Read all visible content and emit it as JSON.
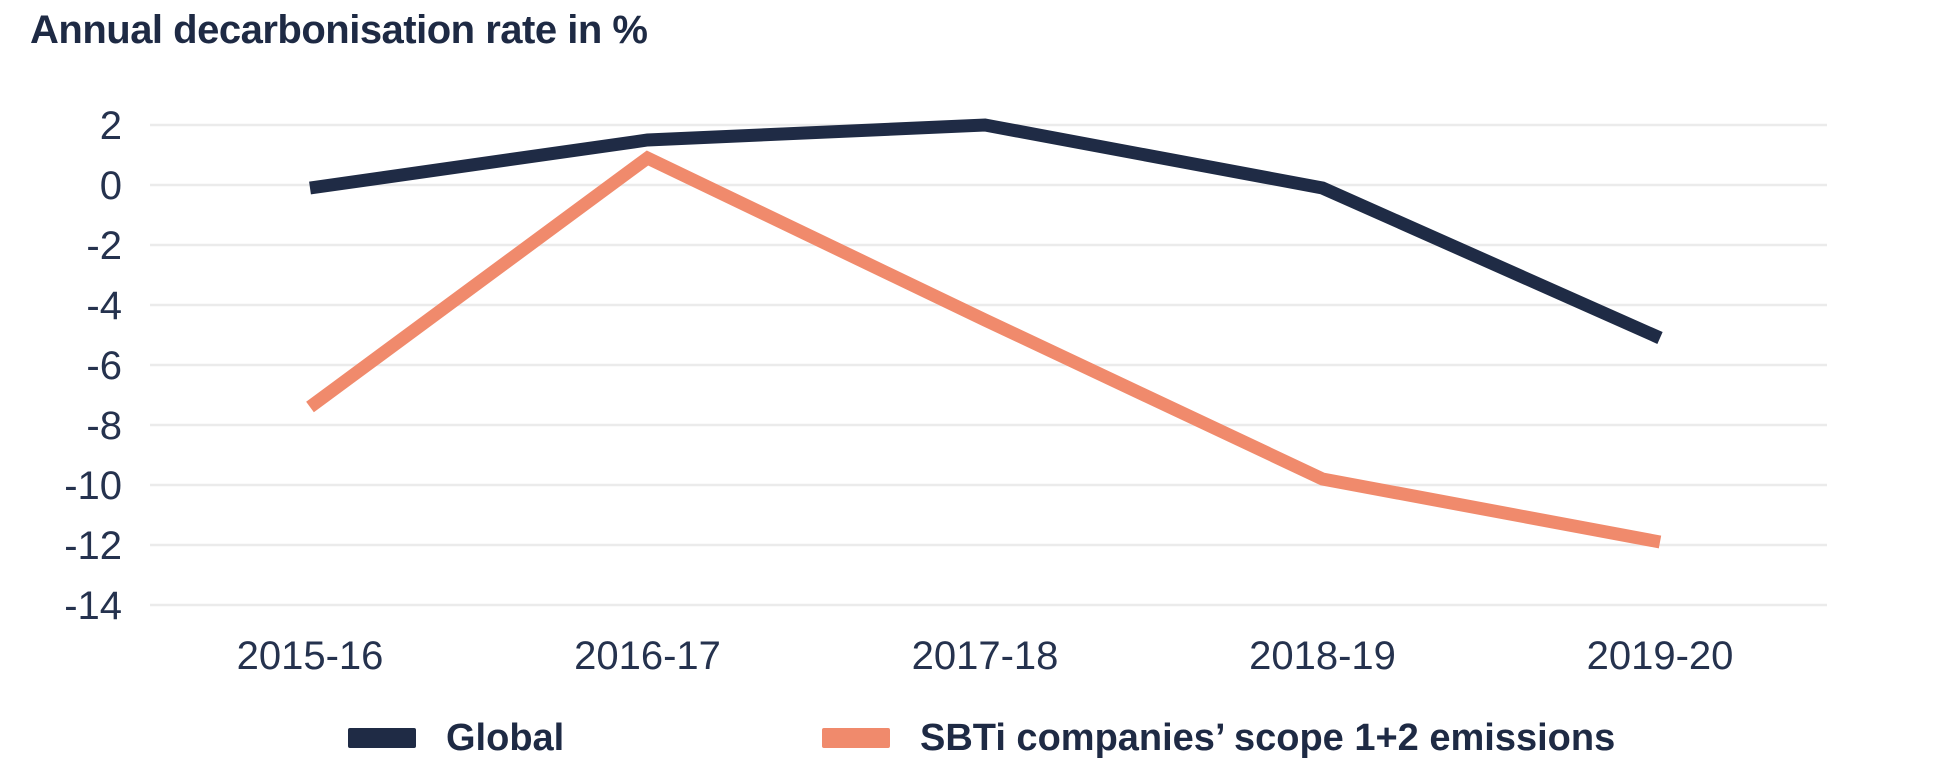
{
  "title": "Annual decarbonisation rate in %",
  "colors": {
    "navy": "#1f2b45",
    "salmon": "#f08a6c",
    "grid": "#ebebeb",
    "text": "#25324e",
    "background": "#ffffff"
  },
  "chart_data": {
    "type": "line",
    "title": "Annual decarbonisation rate in %",
    "categories": [
      "2015-16",
      "2016-17",
      "2017-18",
      "2018-19",
      "2019-20"
    ],
    "series": [
      {
        "id": "global",
        "name": "Global",
        "color": "#1f2b45",
        "values": [
          -0.1,
          1.5,
          2.0,
          -0.1,
          -5.1
        ]
      },
      {
        "id": "sbti",
        "name": "SBTi companies’ scope 1+2 emissions",
        "color": "#f08a6c",
        "values": [
          -7.4,
          0.9,
          -4.5,
          -9.8,
          -11.9
        ]
      }
    ],
    "xlabel": "",
    "ylabel": "Annual decarbonisation rate in %",
    "ylim": [
      -14,
      2
    ],
    "yticks": [
      2,
      0,
      -2,
      -4,
      -6,
      -8,
      -10,
      -12,
      -14
    ],
    "grid": true,
    "legend_position": "bottom"
  }
}
